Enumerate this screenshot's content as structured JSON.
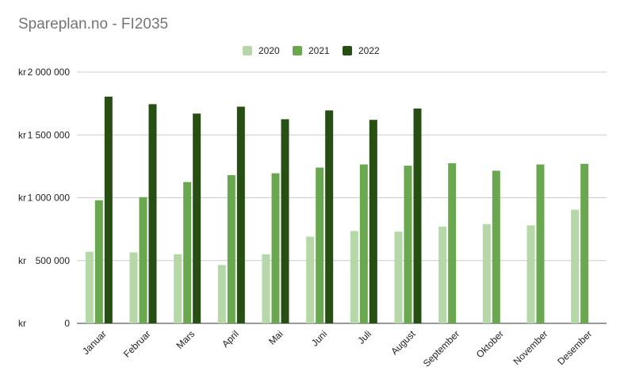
{
  "chart_data": {
    "type": "bar",
    "title": "Spareplan.no - FI2035",
    "xlabel": "",
    "ylabel": "",
    "ylim": [
      0,
      2000000
    ],
    "yticks": [
      {
        "value": 0,
        "label": "kr 0"
      },
      {
        "value": 500000,
        "label": "kr 500 000"
      },
      {
        "value": 1000000,
        "label": "kr 1 000 000"
      },
      {
        "value": 1500000,
        "label": "kr 1 500 000"
      },
      {
        "value": 2000000,
        "label": "kr 2 000 000"
      }
    ],
    "grid": true,
    "legend_position": "top",
    "categories": [
      "Januar",
      "Februar",
      "Mars",
      "April",
      "Mai",
      "Juni",
      "Juli",
      "August",
      "September",
      "Oktober",
      "November",
      "Desember"
    ],
    "series": [
      {
        "name": "2020",
        "color": "#b6d7a8",
        "values": [
          570000,
          565000,
          550000,
          465000,
          550000,
          690000,
          735000,
          730000,
          770000,
          790000,
          780000,
          905000
        ]
      },
      {
        "name": "2021",
        "color": "#6aa84f",
        "values": [
          980000,
          1005000,
          1125000,
          1180000,
          1195000,
          1240000,
          1265000,
          1255000,
          1275000,
          1215000,
          1265000,
          1270000
        ]
      },
      {
        "name": "2022",
        "color": "#274e13",
        "values": [
          1805000,
          1745000,
          1670000,
          1725000,
          1625000,
          1695000,
          1620000,
          1710000,
          null,
          null,
          null,
          null
        ]
      }
    ]
  }
}
